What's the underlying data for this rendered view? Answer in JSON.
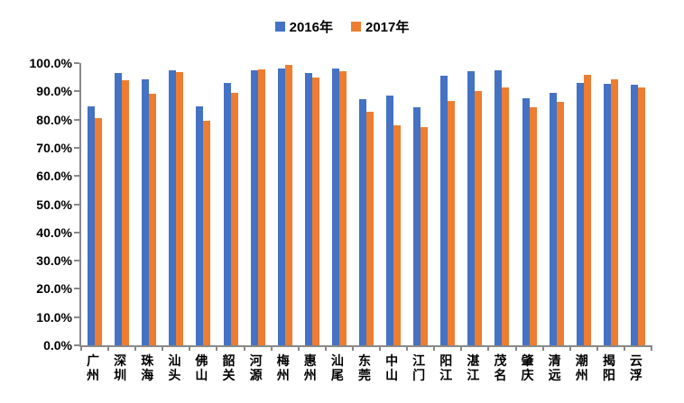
{
  "chart_data": {
    "type": "bar",
    "title": "",
    "xlabel": "",
    "ylabel": "",
    "categories": [
      "广州",
      "深圳",
      "珠海",
      "汕头",
      "佛山",
      "韶关",
      "河源",
      "梅州",
      "惠州",
      "汕尾",
      "东莞",
      "中山",
      "江门",
      "阳江",
      "湛江",
      "茂名",
      "肇庆",
      "清远",
      "潮州",
      "揭阳",
      "云浮"
    ],
    "series": [
      {
        "name": "2016年",
        "color": "#4472C4",
        "values": [
          84.7,
          96.6,
          94.4,
          97.6,
          84.6,
          93.1,
          97.4,
          98.0,
          96.6,
          98.0,
          87.1,
          88.6,
          84.4,
          95.6,
          97.2,
          97.6,
          87.5,
          89.4,
          92.9,
          92.6,
          92.2
        ]
      },
      {
        "name": "2017年",
        "color": "#ED7D31",
        "values": [
          80.5,
          93.9,
          89.1,
          96.8,
          79.6,
          89.4,
          97.9,
          99.5,
          94.9,
          97.0,
          82.6,
          78.0,
          77.4,
          86.5,
          90.1,
          91.5,
          84.5,
          86.4,
          95.7,
          94.2,
          91.5
        ]
      }
    ],
    "ylim": [
      0,
      100
    ],
    "y_tick_labels": [
      "100.0%",
      "90.0%",
      "80.0%",
      "70.0%",
      "60.0%",
      "50.0%",
      "40.0%",
      "30.0%",
      "20.0%",
      "10.0%",
      "0.0%"
    ],
    "grid": false,
    "legend_position": "top-center",
    "axis_color": "#898989",
    "background": "#ffffff",
    "value_unit": "percent"
  }
}
